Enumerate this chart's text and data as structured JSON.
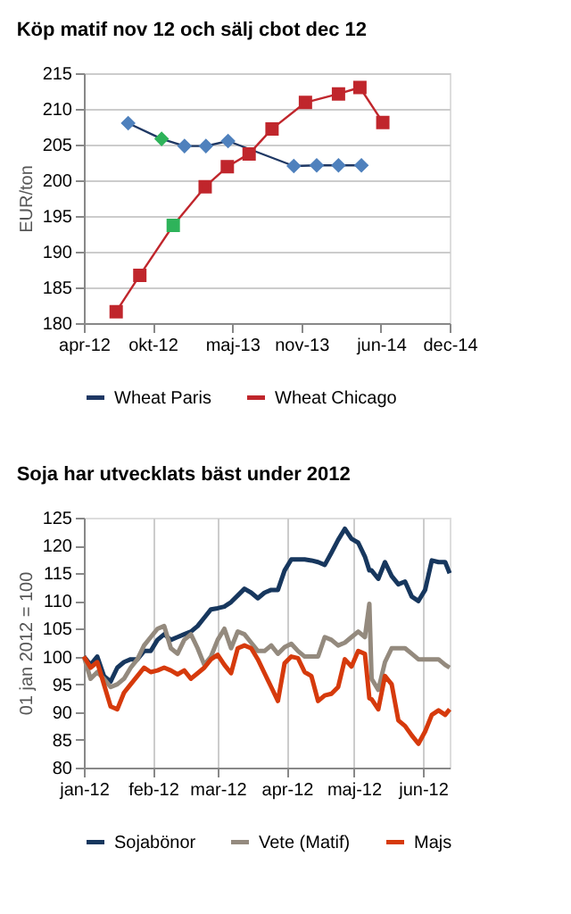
{
  "chart_data": [
    {
      "type": "line",
      "title": "Köp matif nov 12 och sälj cbot dec 12",
      "ylabel": "EUR/ton",
      "xlim": [
        "2012-04-01",
        "2014-12-01"
      ],
      "xticks": [
        {
          "value": "2012-04-01",
          "label": "apr-12"
        },
        {
          "value": "2012-10-01",
          "label": "okt-12"
        },
        {
          "value": "2013-05-01",
          "label": "maj-13"
        },
        {
          "value": "2013-11-01",
          "label": "nov-13"
        },
        {
          "value": "2014-06-01",
          "label": "jun-14"
        },
        {
          "value": "2014-12-01",
          "label": "dec-14"
        }
      ],
      "ylim": [
        180,
        215
      ],
      "yticks": [
        180,
        185,
        190,
        195,
        200,
        205,
        210,
        215
      ],
      "grid": "y",
      "legend": "bottom",
      "series": [
        {
          "name": "Wheat Paris",
          "color": "#1f3864",
          "marker": "diamond",
          "colors": [
            "#4f81bd",
            "#2eb35a",
            "#4f81bd",
            "#4f81bd",
            "#4f81bd",
            "#4f81bd",
            "#4f81bd",
            "#4f81bd",
            "#4f81bd"
          ],
          "x": [
            "2012-07-28",
            "2012-10-25",
            "2012-12-25",
            "2013-02-20",
            "2013-04-20",
            "2013-10-12",
            "2013-12-12",
            "2014-02-08",
            "2014-04-10"
          ],
          "values": [
            208,
            205.8,
            204.8,
            204.8,
            205.5,
            202,
            202.1,
            202.1,
            202.1
          ]
        },
        {
          "name": "Wheat Chicago",
          "color": "#c0262c",
          "marker": "square",
          "colors": [
            "#c0262c",
            "#c0262c",
            "#2eb35a",
            "#c0262c",
            "#c0262c",
            "#c0262c",
            "#c0262c",
            "#c0262c",
            "#c0262c",
            "#c0262c",
            "#c0262c"
          ],
          "x": [
            "2012-06-26",
            "2012-08-28",
            "2012-11-25",
            "2013-02-18",
            "2013-04-18",
            "2013-06-15",
            "2013-08-15",
            "2013-11-12",
            "2014-02-08",
            "2014-04-06",
            "2014-06-06"
          ],
          "values": [
            181.6,
            186.7,
            193.7,
            199.1,
            201.9,
            203.7,
            207.2,
            210.9,
            212.1,
            213,
            208.1
          ]
        }
      ]
    },
    {
      "type": "line",
      "title": "Soja har utvecklats bäst under 2012",
      "ylabel": "01 jan 2012 = 100",
      "xlim": [
        "2012-01-01",
        "2012-06-13"
      ],
      "xticks": [
        {
          "value": "2012-01-01",
          "label": "jan-12"
        },
        {
          "value": "2012-02-01",
          "label": "feb-12"
        },
        {
          "value": "2012-03-01",
          "label": "mar-12"
        },
        {
          "value": "2012-04-01",
          "label": "apr-12"
        },
        {
          "value": "2012-05-01",
          "label": "maj-12"
        },
        {
          "value": "2012-06-01",
          "label": "jun-12"
        }
      ],
      "ylim": [
        80,
        125
      ],
      "yticks": [
        80,
        85,
        90,
        95,
        100,
        105,
        110,
        115,
        120,
        125
      ],
      "grid": "x",
      "legend": "bottom",
      "x": [
        "2012-01-01",
        "2012-01-04",
        "2012-01-07",
        "2012-01-10",
        "2012-01-13",
        "2012-01-16",
        "2012-01-19",
        "2012-01-22",
        "2012-01-25",
        "2012-01-28",
        "2012-01-31",
        "2012-02-03",
        "2012-02-06",
        "2012-02-09",
        "2012-02-12",
        "2012-02-15",
        "2012-02-18",
        "2012-02-21",
        "2012-02-24",
        "2012-02-27",
        "2012-03-01",
        "2012-03-04",
        "2012-03-07",
        "2012-03-10",
        "2012-03-13",
        "2012-03-16",
        "2012-03-19",
        "2012-03-22",
        "2012-03-25",
        "2012-03-28",
        "2012-03-31",
        "2012-04-03",
        "2012-04-06",
        "2012-04-09",
        "2012-04-12",
        "2012-04-15",
        "2012-04-18",
        "2012-04-21",
        "2012-04-24",
        "2012-04-27",
        "2012-04-30",
        "2012-05-03",
        "2012-05-06",
        "2012-05-08",
        "2012-05-09",
        "2012-05-12",
        "2012-05-15",
        "2012-05-18",
        "2012-05-21",
        "2012-05-24",
        "2012-05-27",
        "2012-05-30",
        "2012-06-02",
        "2012-06-05",
        "2012-06-08",
        "2012-06-11",
        "2012-06-13"
      ],
      "series": [
        {
          "name": "Sojabönor",
          "color": "#17375e",
          "values": [
            100,
            98.5,
            100,
            96.5,
            95.5,
            98,
            99,
            99.5,
            99.5,
            101,
            101,
            103,
            104,
            103,
            103.5,
            104,
            104.5,
            105.5,
            107,
            108.5,
            108.7,
            109,
            109.8,
            111,
            112.2,
            111.5,
            110.5,
            111.5,
            112,
            112,
            115.5,
            117.5,
            117.5,
            117.5,
            117.3,
            117,
            116.5,
            118.7,
            121,
            123,
            121.2,
            120.5,
            118,
            115.5,
            115.5,
            114,
            117,
            114.5,
            113,
            113.5,
            110.8,
            110,
            112,
            117.3,
            117,
            117,
            115
          ]
        },
        {
          "name": "Vete (Matif)",
          "color": "#948a7e",
          "values": [
            100,
            96,
            97.2,
            96,
            94.5,
            95,
            96,
            98,
            99.5,
            102,
            103.5,
            105,
            105.5,
            101.5,
            100.5,
            103,
            104,
            101.5,
            98.5,
            100,
            103,
            105,
            101.5,
            104.5,
            104,
            102.5,
            101,
            101,
            102,
            100.5,
            101.7,
            102.3,
            101,
            100,
            100,
            100,
            103.5,
            103,
            102,
            102.5,
            103.5,
            104.5,
            103.5,
            109.5,
            96,
            94,
            99,
            101.5,
            101.5,
            101.5,
            100.5,
            99.5,
            99.5,
            99.5,
            99.5,
            98.5,
            98
          ]
        },
        {
          "name": "Majs",
          "color": "#d63a0c",
          "values": [
            100,
            98,
            99,
            95,
            91,
            90.5,
            93.5,
            95,
            96.5,
            98,
            97.2,
            97.5,
            98,
            97.5,
            96.8,
            97.5,
            96,
            97,
            98,
            99.5,
            100.3,
            98.5,
            97,
            101.5,
            102,
            101.5,
            99.5,
            97,
            94.5,
            92,
            98.8,
            100,
            99.7,
            97.2,
            96.5,
            92,
            93,
            93.3,
            94.5,
            99.5,
            98.2,
            101,
            100.5,
            92.5,
            92.3,
            90.5,
            96.5,
            95,
            88.5,
            87.5,
            85.8,
            84.3,
            86.5,
            89.5,
            90.3,
            89.5,
            90.5
          ]
        }
      ]
    }
  ]
}
